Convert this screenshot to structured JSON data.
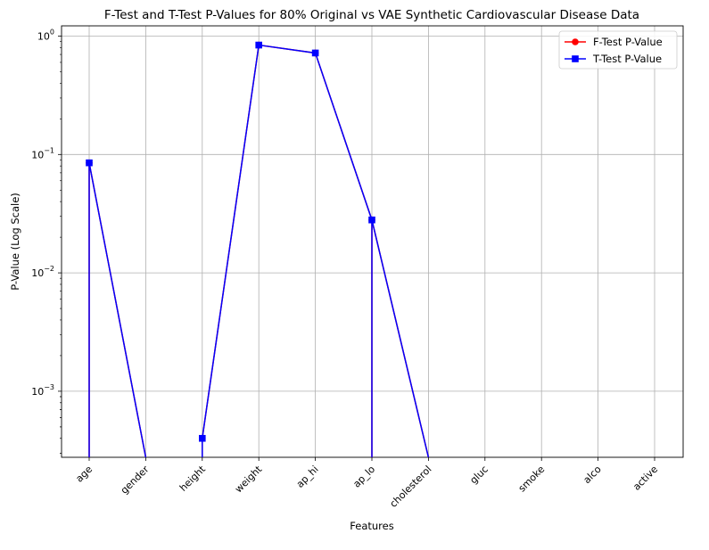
{
  "chart_data": {
    "type": "line",
    "title": "F-Test and T-Test P-Values for 80% Original vs VAE Synthetic Cardiovascular Disease Data",
    "xlabel": "Features",
    "ylabel": "P-Value (Log Scale)",
    "yscale": "log",
    "ylim": [
      0.00026,
      1.2
    ],
    "grid": true,
    "legend_position": "top-right",
    "categories": [
      "age",
      "gender",
      "height",
      "weight",
      "ap_hi",
      "ap_lo",
      "cholesterol",
      "gluc",
      "smoke",
      "alco",
      "active"
    ],
    "y_ticks": [
      {
        "base": "10",
        "exp": "0",
        "value": 1
      },
      {
        "base": "10",
        "exp": "−1",
        "value": 0.1
      },
      {
        "base": "10",
        "exp": "−2",
        "value": 0.01
      },
      {
        "base": "10",
        "exp": "−3",
        "value": 0.001
      }
    ],
    "series": [
      {
        "name": "F-Test P-Value",
        "color": "#ff0000",
        "marker": "circle",
        "values": [
          0.085,
          0,
          0.0004,
          0.84,
          0.72,
          0.028,
          0,
          0,
          0,
          0,
          0
        ]
      },
      {
        "name": "T-Test P-Value",
        "color": "#0000ff",
        "marker": "square",
        "values": [
          0.085,
          0,
          0.0004,
          0.84,
          0.72,
          0.028,
          0,
          0,
          0,
          0,
          0
        ]
      }
    ]
  }
}
